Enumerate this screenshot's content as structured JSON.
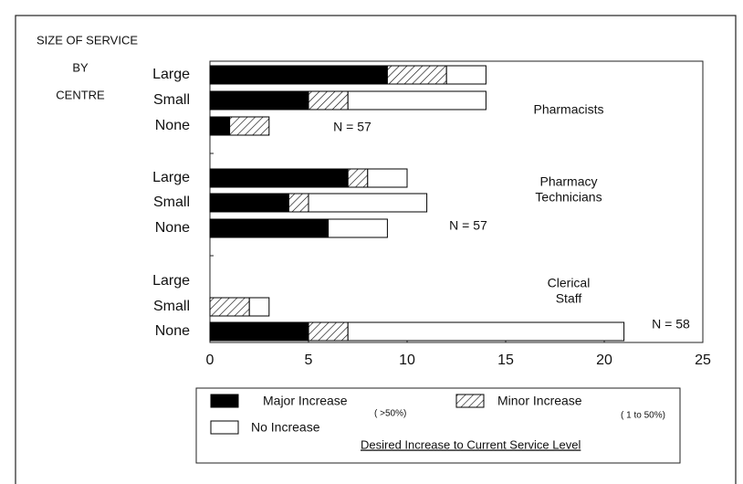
{
  "chart_data": {
    "type": "stacked-barh",
    "header": [
      "SIZE OF SERVICE",
      "BY",
      "CENTRE"
    ],
    "categories": [
      "Large",
      "Small",
      "None",
      "Large",
      "Small",
      "None",
      "Large",
      "Small",
      "None"
    ],
    "groups": [
      {
        "label": [
          "Pharmacists"
        ],
        "note": "N = 57"
      },
      {
        "label": [
          "Pharmacy",
          "Technicians"
        ],
        "note": "N = 57"
      },
      {
        "label": [
          "Clerical",
          "Staff"
        ],
        "note": "N = 58"
      }
    ],
    "series": [
      {
        "name": "Major Increase",
        "note": "( >50%)",
        "color": "#000000",
        "values": [
          9,
          5,
          1,
          7,
          4,
          6,
          0,
          0,
          5
        ]
      },
      {
        "name": "Minor Increase",
        "note": "( 1 to 50%)",
        "color": "hatch",
        "values": [
          3,
          2,
          2,
          1,
          1,
          0,
          0,
          2,
          2
        ]
      },
      {
        "name": "No Increase",
        "color": "#ffffff",
        "values": [
          2,
          7,
          0,
          2,
          6,
          3,
          0,
          1,
          14
        ]
      }
    ],
    "xlabel": "Desired Increase to Current Service Level",
    "xlim": [
      0,
      25
    ],
    "xticks": [
      0,
      5,
      10,
      15,
      20,
      25
    ]
  }
}
